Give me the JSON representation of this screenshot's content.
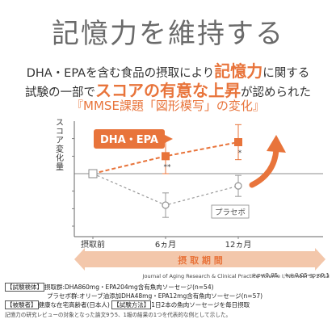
{
  "header": {
    "title": "記憶力を維持する",
    "line1_pre": "DHA・EPAを含む食品の摂取により",
    "line1_highlight": "記憶力",
    "line1_post": "に関する",
    "line2_pre": "試験の一部で",
    "line2_highlight": "スコアの有意な上昇",
    "line2_post": "が認められた",
    "subtitle": "『MMSE課題「図形模写」の変化』"
  },
  "chart_data": {
    "type": "line",
    "categories": [
      "摂取前",
      "6ヵ月",
      "12ヵ月"
    ],
    "ylabel": "スコア変化量",
    "series": [
      {
        "name": "DHA・EPA",
        "values": [
          0,
          0.05,
          0.09
        ],
        "err": [
          0.015,
          0.05,
          0.05
        ],
        "color": "#e8743b",
        "marks": [
          "",
          "**",
          "*"
        ]
      },
      {
        "name": "プラセボ",
        "values": [
          0,
          -0.09,
          -0.035
        ],
        "err": [
          0.015,
          0.035,
          0.03
        ],
        "color": "#999999",
        "marks": [
          "",
          "",
          ""
        ]
      }
    ],
    "ylim": [
      -0.18,
      0.15
    ],
    "period_label": "摂 取 期 間",
    "significance_note": "＊p<0.05　＊＊0.05<p<0.1",
    "colors": {
      "accent": "#e8743b",
      "placebo": "#999999",
      "period_arrow": "#f3c7ab"
    }
  },
  "footer": {
    "line1_label": "【試験検体】",
    "line1_text": "摂取群:DHA860mg・EPA204mg含有魚肉ソーセージ(n=54)",
    "line2_text": "プラセボ群:オリーブ油添加DHA48mg・EPA12mg含有魚肉ソーセージ(n=57)",
    "line3_label1": "【被験者】",
    "line3_text1": "健康な在宅高齢者(日本人)",
    "line3_label2": "【試験方法】",
    "line3_text2": "1日2本の魚肉ソーセージを毎日摂取",
    "citation": "Journal of Aging Research & Clinical Practice  Volume I, Number 3, 2012",
    "footnote": "記憶力の研究レビューの対象となった論文9う5、1報の結果の1つを代表的な例として示した。"
  }
}
